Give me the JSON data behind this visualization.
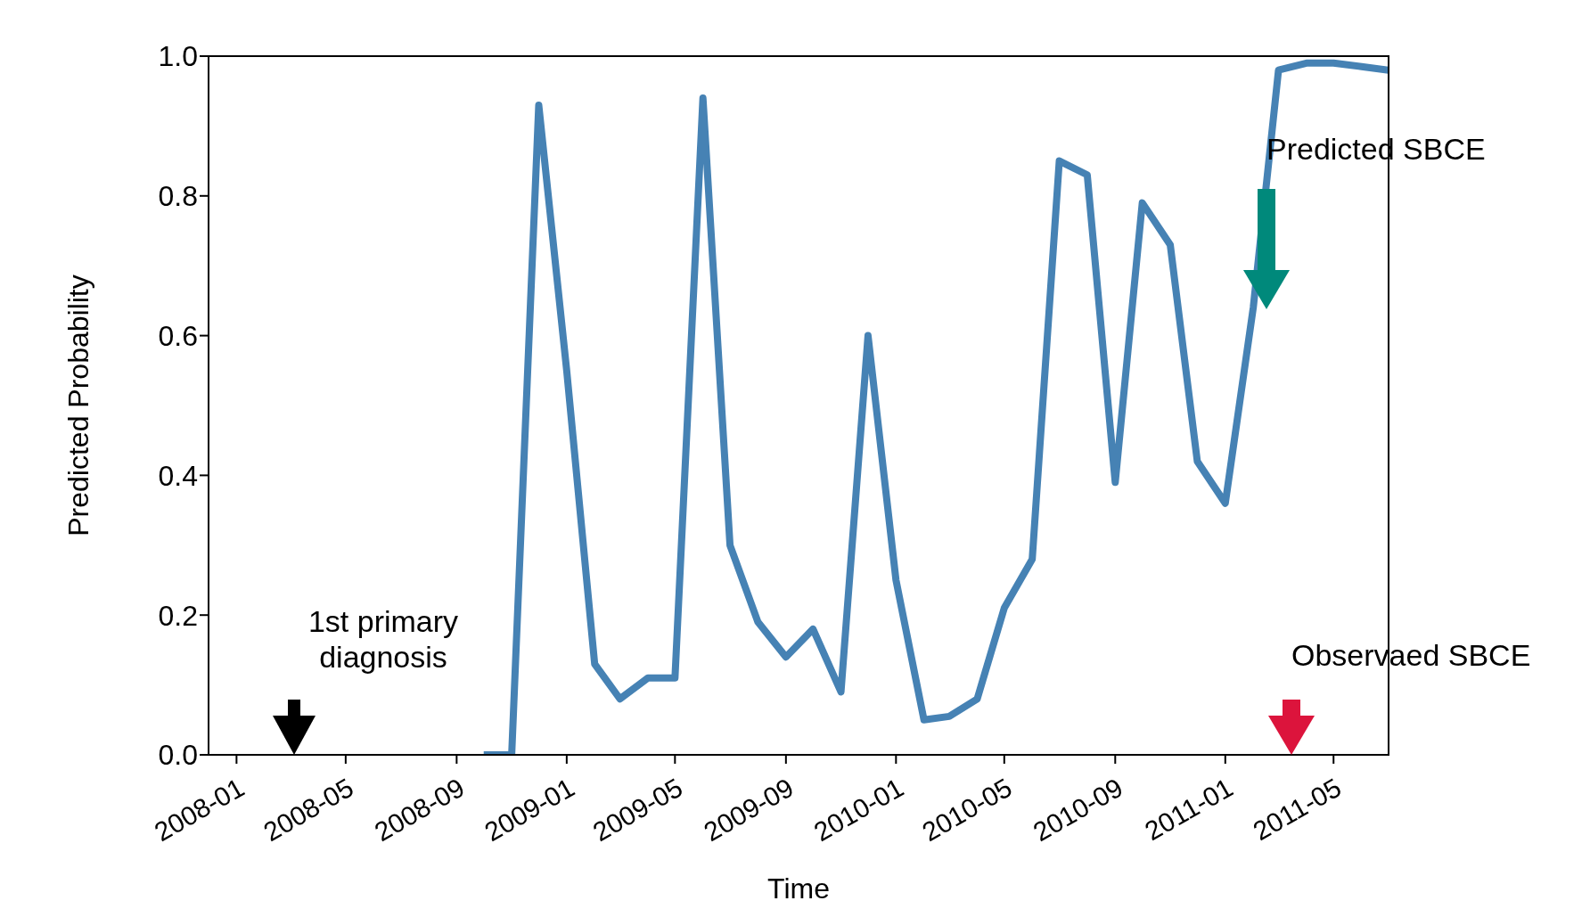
{
  "chart_data": {
    "type": "line",
    "xlabel": "Time",
    "ylabel": "Predicted Probability",
    "x": [
      "2008-10",
      "2008-11",
      "2008-12",
      "2009-01",
      "2009-02",
      "2009-03",
      "2009-04",
      "2009-05",
      "2009-06",
      "2009-07",
      "2009-08",
      "2009-09",
      "2009-10",
      "2009-11",
      "2009-12",
      "2010-01",
      "2010-02",
      "2010-03",
      "2010-04",
      "2010-05",
      "2010-06",
      "2010-07",
      "2010-08",
      "2010-09",
      "2010-10",
      "2010-11",
      "2010-12",
      "2011-01",
      "2011-02",
      "2011-03",
      "2011-04",
      "2011-05",
      "2011-06",
      "2011-07"
    ],
    "series": [
      {
        "color": "#4682b4",
        "values": [
          0,
          0,
          0.93,
          0.55,
          0.13,
          0.08,
          0.11,
          0.11,
          0.94,
          0.3,
          0.19,
          0.14,
          0.18,
          0.09,
          0.6,
          0.25,
          0.05,
          0.055,
          0.08,
          0.21,
          0.28,
          0.85,
          0.83,
          0.39,
          0.79,
          0.73,
          0.42,
          0.36,
          0.64,
          0.98,
          0.99,
          0.99,
          0.985,
          0.98
        ]
      }
    ],
    "xlim": [
      "2007-12",
      "2011-07"
    ],
    "xticks": [
      "2008-01",
      "2008-05",
      "2008-09",
      "2009-01",
      "2009-05",
      "2009-09",
      "2010-01",
      "2010-05",
      "2010-09",
      "2011-01",
      "2011-05"
    ],
    "ylim": [
      0,
      1
    ],
    "yticks": [
      {
        "value": 0,
        "label": "0.0"
      },
      0.2,
      0.4,
      0.6,
      0.8,
      {
        "value": 1,
        "label": "1.0"
      }
    ],
    "grid": false,
    "legend": false,
    "marker": "none",
    "line_style": "solid",
    "annotations": [
      "1st primary\ndiagnosis",
      "Predicted SBCE",
      "Observaed SBCE"
    ]
  }
}
